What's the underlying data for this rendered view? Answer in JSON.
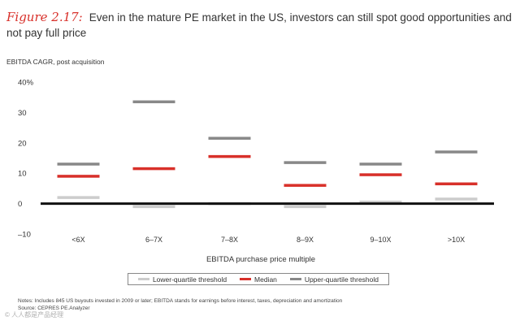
{
  "header": {
    "figure_label": "Figure 2.17:",
    "title": "Even in the mature PE market in the US, investors can still spot good opportunities and not pay full price"
  },
  "chart_data": {
    "type": "range-markers",
    "ylabel": "EBITDA CAGR, post acquisition",
    "xlabel": "EBITDA purchase price multiple",
    "ylim": [
      -10,
      40
    ],
    "yticks": [
      -10,
      0,
      10,
      20,
      30,
      40
    ],
    "ytick_labels": [
      "–10",
      "0",
      "10",
      "20",
      "30",
      "40%"
    ],
    "categories": [
      "<6X",
      "6–7X",
      "7–8X",
      "8–9X",
      "9–10X",
      ">10X"
    ],
    "series": [
      {
        "name": "Lower-quartile threshold",
        "color": "#cccccc",
        "values": [
          2,
          -1,
          0,
          -1,
          0.5,
          1.5
        ]
      },
      {
        "name": "Median",
        "color": "#d8302a",
        "values": [
          9,
          11.5,
          15.5,
          6,
          9.5,
          6.5
        ]
      },
      {
        "name": "Upper-quartile threshold",
        "color": "#888888",
        "values": [
          13,
          33.5,
          21.5,
          13.5,
          13,
          17
        ]
      }
    ]
  },
  "legend": {
    "lower": "Lower-quartile threshold",
    "median": "Median",
    "upper": "Upper-quartile threshold"
  },
  "footer": {
    "notes": "Notes: Includes 845 US buyouts invested in 2009 or later; EBITDA stands for earnings before interest, taxes, depreciation and amortization",
    "source": "Source: CEPRES PE.Analyzer",
    "watermark": "© 人人都是产品经理"
  }
}
